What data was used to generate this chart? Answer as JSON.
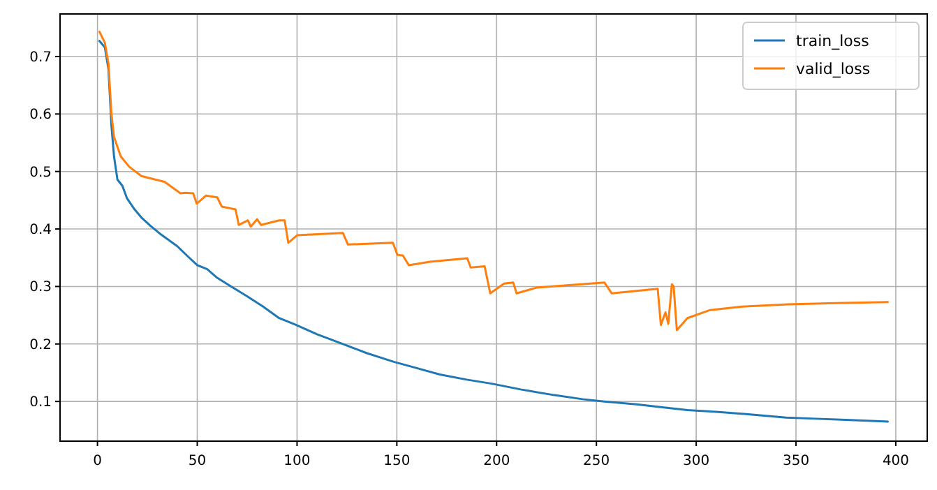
{
  "chart_data": {
    "type": "line",
    "xlim": [
      -18.75,
      415.75
    ],
    "ylim": [
      0.031,
      0.774
    ],
    "xticks": [
      0,
      50,
      100,
      150,
      200,
      250,
      300,
      350,
      400
    ],
    "yticks": [
      0.1,
      0.2,
      0.3,
      0.4,
      0.5,
      0.6,
      0.7
    ],
    "grid": true,
    "legend": "top right",
    "line_style": "solid",
    "marker": "none",
    "series": [
      {
        "name": "train_loss",
        "color": "#1f77b4",
        "x": [
          1,
          3.7,
          5.5,
          7,
          8.3,
          10,
          12.5,
          14.7,
          18.6,
          22,
          26.7,
          32,
          40,
          46,
          50,
          55,
          60,
          67,
          75,
          83,
          91,
          99,
          110,
          123,
          135,
          148.5,
          160,
          171.5,
          185,
          197.5,
          212,
          229,
          243,
          254,
          270,
          283,
          295.6,
          310,
          325,
          345,
          360,
          375,
          390,
          396
        ],
        "values": [
          0.727,
          0.716,
          0.678,
          0.58,
          0.526,
          0.486,
          0.475,
          0.454,
          0.434,
          0.42,
          0.405,
          0.39,
          0.37,
          0.35,
          0.337,
          0.33,
          0.315,
          0.3,
          0.283,
          0.265,
          0.245,
          0.234,
          0.217,
          0.2,
          0.184,
          0.169,
          0.158,
          0.147,
          0.138,
          0.131,
          0.121,
          0.111,
          0.104,
          0.1,
          0.095,
          0.09,
          0.085,
          0.082,
          0.078,
          0.072,
          0.07,
          0.068,
          0.066,
          0.065
        ]
      },
      {
        "name": "valid_loss",
        "color": "#ff7f0e",
        "x": [
          1,
          3.7,
          5.5,
          7,
          8.3,
          11.7,
          16,
          22,
          33.6,
          41.6,
          44,
          48,
          49.7,
          54.3,
          60,
          62.3,
          69.2,
          70.8,
          75.4,
          76.8,
          80,
          82,
          91,
          93.8,
          95.6,
          100,
          123,
          125.5,
          148,
          150.3,
          153,
          156,
          166.6,
          185.3,
          187,
          194,
          196.8,
          203.7,
          208.3,
          210,
          220,
          254,
          257.7,
          280.7,
          282.3,
          284.6,
          286,
          287.8,
          288.7,
          290.3,
          295.6,
          307,
          323,
          346,
          370,
          396
        ],
        "values": [
          0.743,
          0.724,
          0.688,
          0.6,
          0.56,
          0.526,
          0.508,
          0.492,
          0.482,
          0.462,
          0.463,
          0.462,
          0.444,
          0.458,
          0.455,
          0.439,
          0.434,
          0.407,
          0.415,
          0.404,
          0.417,
          0.407,
          0.415,
          0.415,
          0.376,
          0.389,
          0.393,
          0.373,
          0.376,
          0.355,
          0.354,
          0.337,
          0.343,
          0.349,
          0.333,
          0.335,
          0.288,
          0.305,
          0.307,
          0.288,
          0.298,
          0.307,
          0.288,
          0.296,
          0.233,
          0.255,
          0.235,
          0.304,
          0.3,
          0.224,
          0.245,
          0.259,
          0.265,
          0.269,
          0.271,
          0.273
        ]
      }
    ]
  }
}
